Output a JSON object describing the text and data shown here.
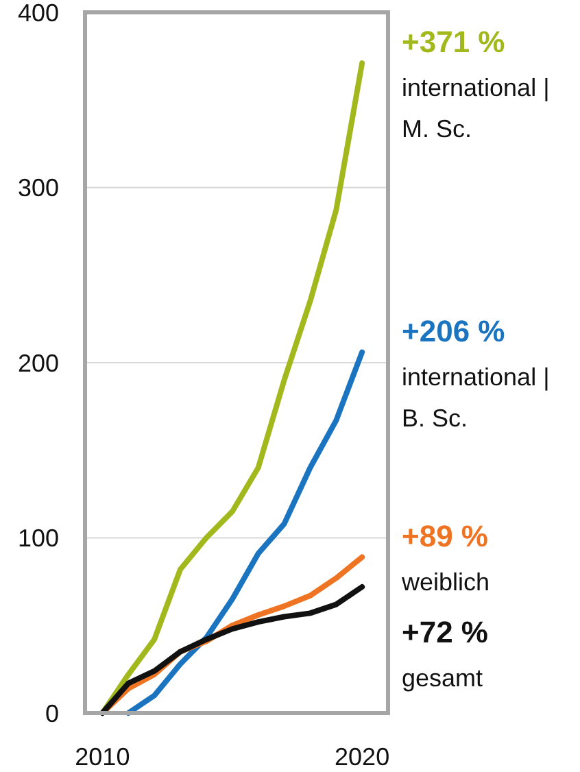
{
  "chart_data": {
    "type": "line",
    "x": [
      2010,
      2011,
      2012,
      2013,
      2014,
      2015,
      2016,
      2017,
      2018,
      2019,
      2020
    ],
    "series": [
      {
        "name": "international | M. Sc.",
        "color": "#a2b81c",
        "values": [
          0,
          22,
          42,
          82,
          100,
          115,
          140,
          190,
          235,
          287,
          371
        ]
      },
      {
        "name": "international | B. Sc.",
        "color": "#1a74bf",
        "values": [
          null,
          0,
          10,
          28,
          43,
          65,
          91,
          108,
          140,
          167,
          206
        ]
      },
      {
        "name": "weiblich",
        "color": "#ee7424",
        "values": [
          0,
          14,
          22,
          35,
          41,
          50,
          56,
          61,
          67,
          77,
          89
        ]
      },
      {
        "name": "gesamt",
        "color": "#111111",
        "values": [
          0,
          17,
          24,
          35,
          42,
          48,
          52,
          55,
          57,
          62,
          72
        ]
      }
    ],
    "annotations": [
      "+371 %",
      "+206 %",
      "+89 %",
      "+72 %"
    ],
    "xlim": [
      2009.33,
      2021
    ],
    "xticks": [
      2010,
      2020
    ],
    "ylim": [
      0,
      400
    ],
    "yticks": [
      0,
      100,
      200,
      300,
      400
    ],
    "grid": "y",
    "marker": "none",
    "line_style": "solid"
  }
}
